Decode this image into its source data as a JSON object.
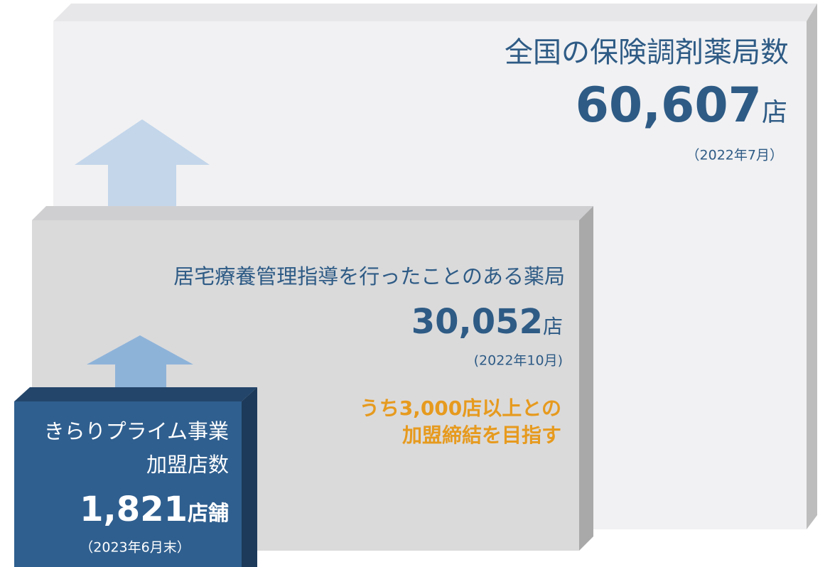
{
  "boxes": [
    {
      "title_lines": [
        "全国の保険調剤薬局数"
      ],
      "count": "60,607",
      "unit": "店",
      "date": "（2022年7月）"
    },
    {
      "title_lines": [
        "居宅療養管理指導を行ったことのある薬局"
      ],
      "count": "30,052",
      "unit": "店",
      "date": "(2022年10月)",
      "note_lines": [
        "うち3,000店以上との",
        "加盟締結を目指す"
      ]
    },
    {
      "title_lines": [
        "きらりプライム事業",
        "加盟店数"
      ],
      "count": "1,821",
      "unit": "店舗",
      "date": "（2023年6月末）"
    }
  ]
}
